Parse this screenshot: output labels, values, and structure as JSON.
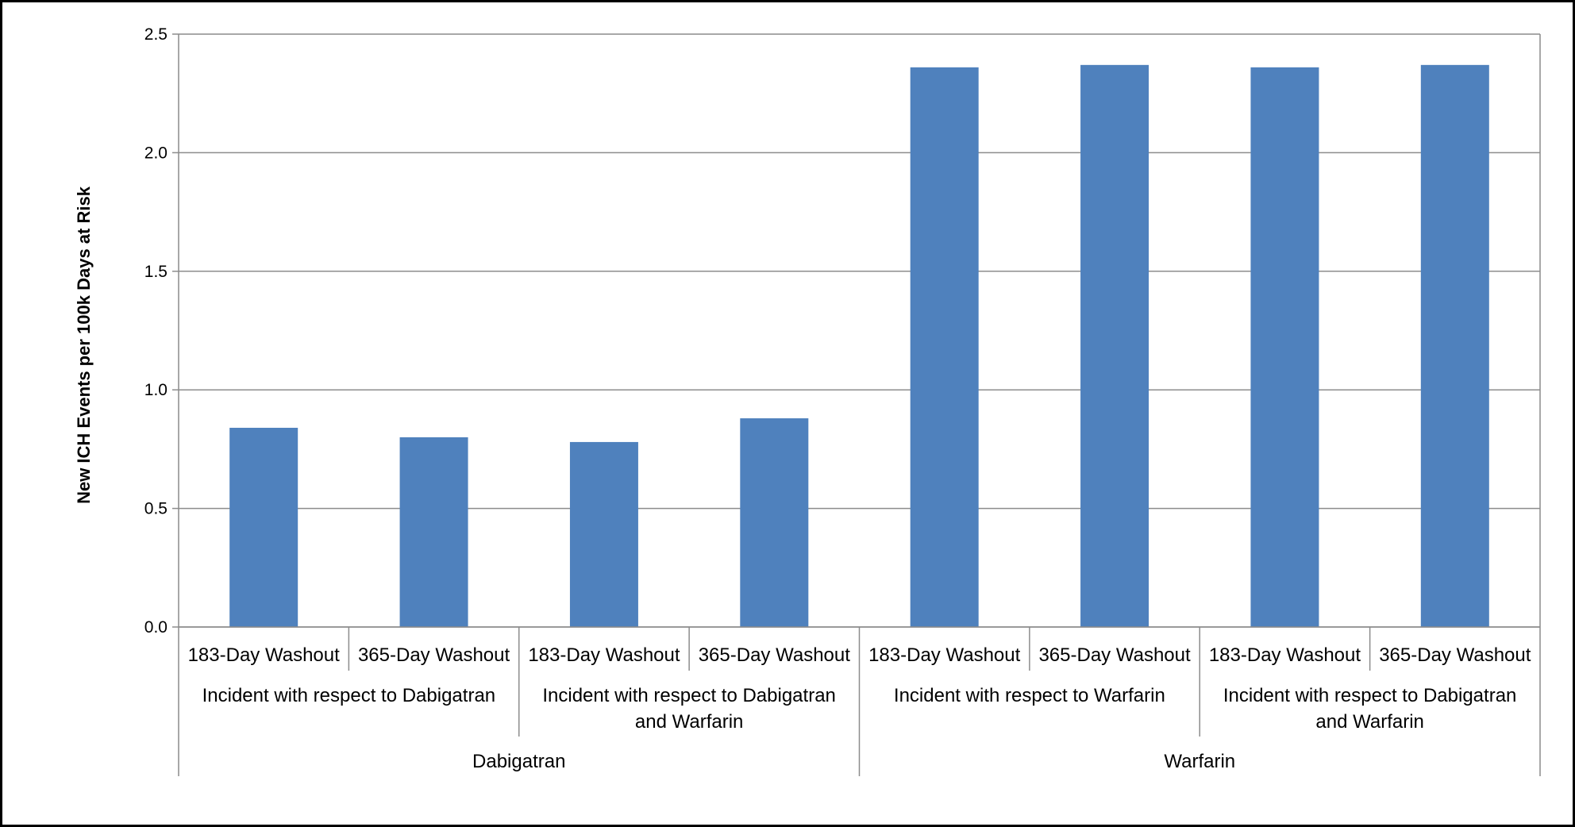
{
  "chart_data": {
    "type": "bar",
    "title": "",
    "ylabel": "New ICH Events per 100k Days at Risk",
    "xlabel": "",
    "ylim": [
      0,
      2.5
    ],
    "yticks": [
      "0.0",
      "0.5",
      "1.0",
      "1.5",
      "2.0",
      "2.5"
    ],
    "grid": "horizontal",
    "legend": "none",
    "bar_color": "#4F81BD",
    "categories": [
      "183-Day Washout",
      "365-Day Washout",
      "183-Day Washout",
      "365-Day Washout",
      "183-Day Washout",
      "365-Day Washout",
      "183-Day Washout",
      "365-Day Washout"
    ],
    "values": [
      0.84,
      0.8,
      0.78,
      0.88,
      2.36,
      2.37,
      2.36,
      2.37
    ],
    "groups_level2": [
      {
        "lines": [
          "Incident with respect to Dabigatran"
        ],
        "span": 2
      },
      {
        "lines": [
          "Incident with respect to Dabigatran",
          "and Warfarin"
        ],
        "span": 2
      },
      {
        "lines": [
          "Incident with respect to Warfarin"
        ],
        "span": 2
      },
      {
        "lines": [
          "Incident with respect to Dabigatran",
          "and Warfarin"
        ],
        "span": 2
      }
    ],
    "groups_level3": [
      {
        "label": "Dabigatran",
        "span": 4
      },
      {
        "label": "Warfarin",
        "span": 4
      }
    ]
  }
}
